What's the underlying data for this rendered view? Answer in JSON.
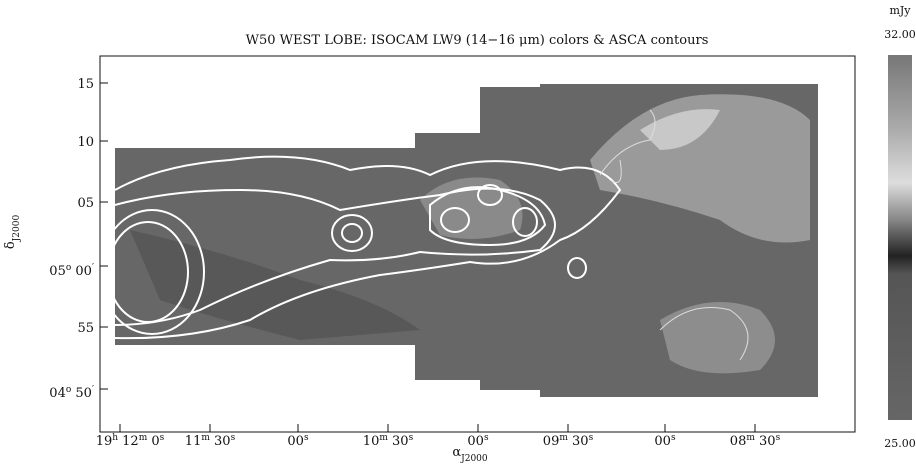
{
  "title": [
    "W50 WEST LOBE:  ISOCAM LW9 (14",
    "−",
    "16 ",
    "μ",
    "m) colors  &  ASCA contours"
  ],
  "x_axis": {
    "label": [
      "α",
      "J2000"
    ],
    "ticks": [
      [
        "19",
        "h",
        " 12",
        "m",
        " 0",
        "s"
      ],
      [
        "11",
        "m",
        " 30",
        "s"
      ],
      [
        "00",
        "s"
      ],
      [
        "10",
        "m",
        " 30",
        "s"
      ],
      [
        "00",
        "s"
      ],
      [
        "09",
        "m",
        " 30",
        "s"
      ],
      [
        "00",
        "s"
      ],
      [
        "08",
        "m",
        " 30",
        "s"
      ]
    ]
  },
  "y_axis": {
    "label": [
      "δ",
      "J2000"
    ],
    "ticks": [
      [
        "15"
      ],
      [
        "10"
      ],
      [
        "05"
      ],
      [
        "05",
        "o",
        " 00",
        "′"
      ],
      [
        "55"
      ],
      [
        "04",
        "o",
        " 50",
        "′"
      ]
    ]
  },
  "colorbar": {
    "unit": "mJy",
    "max": "32.00",
    "min": "25.00"
  }
}
